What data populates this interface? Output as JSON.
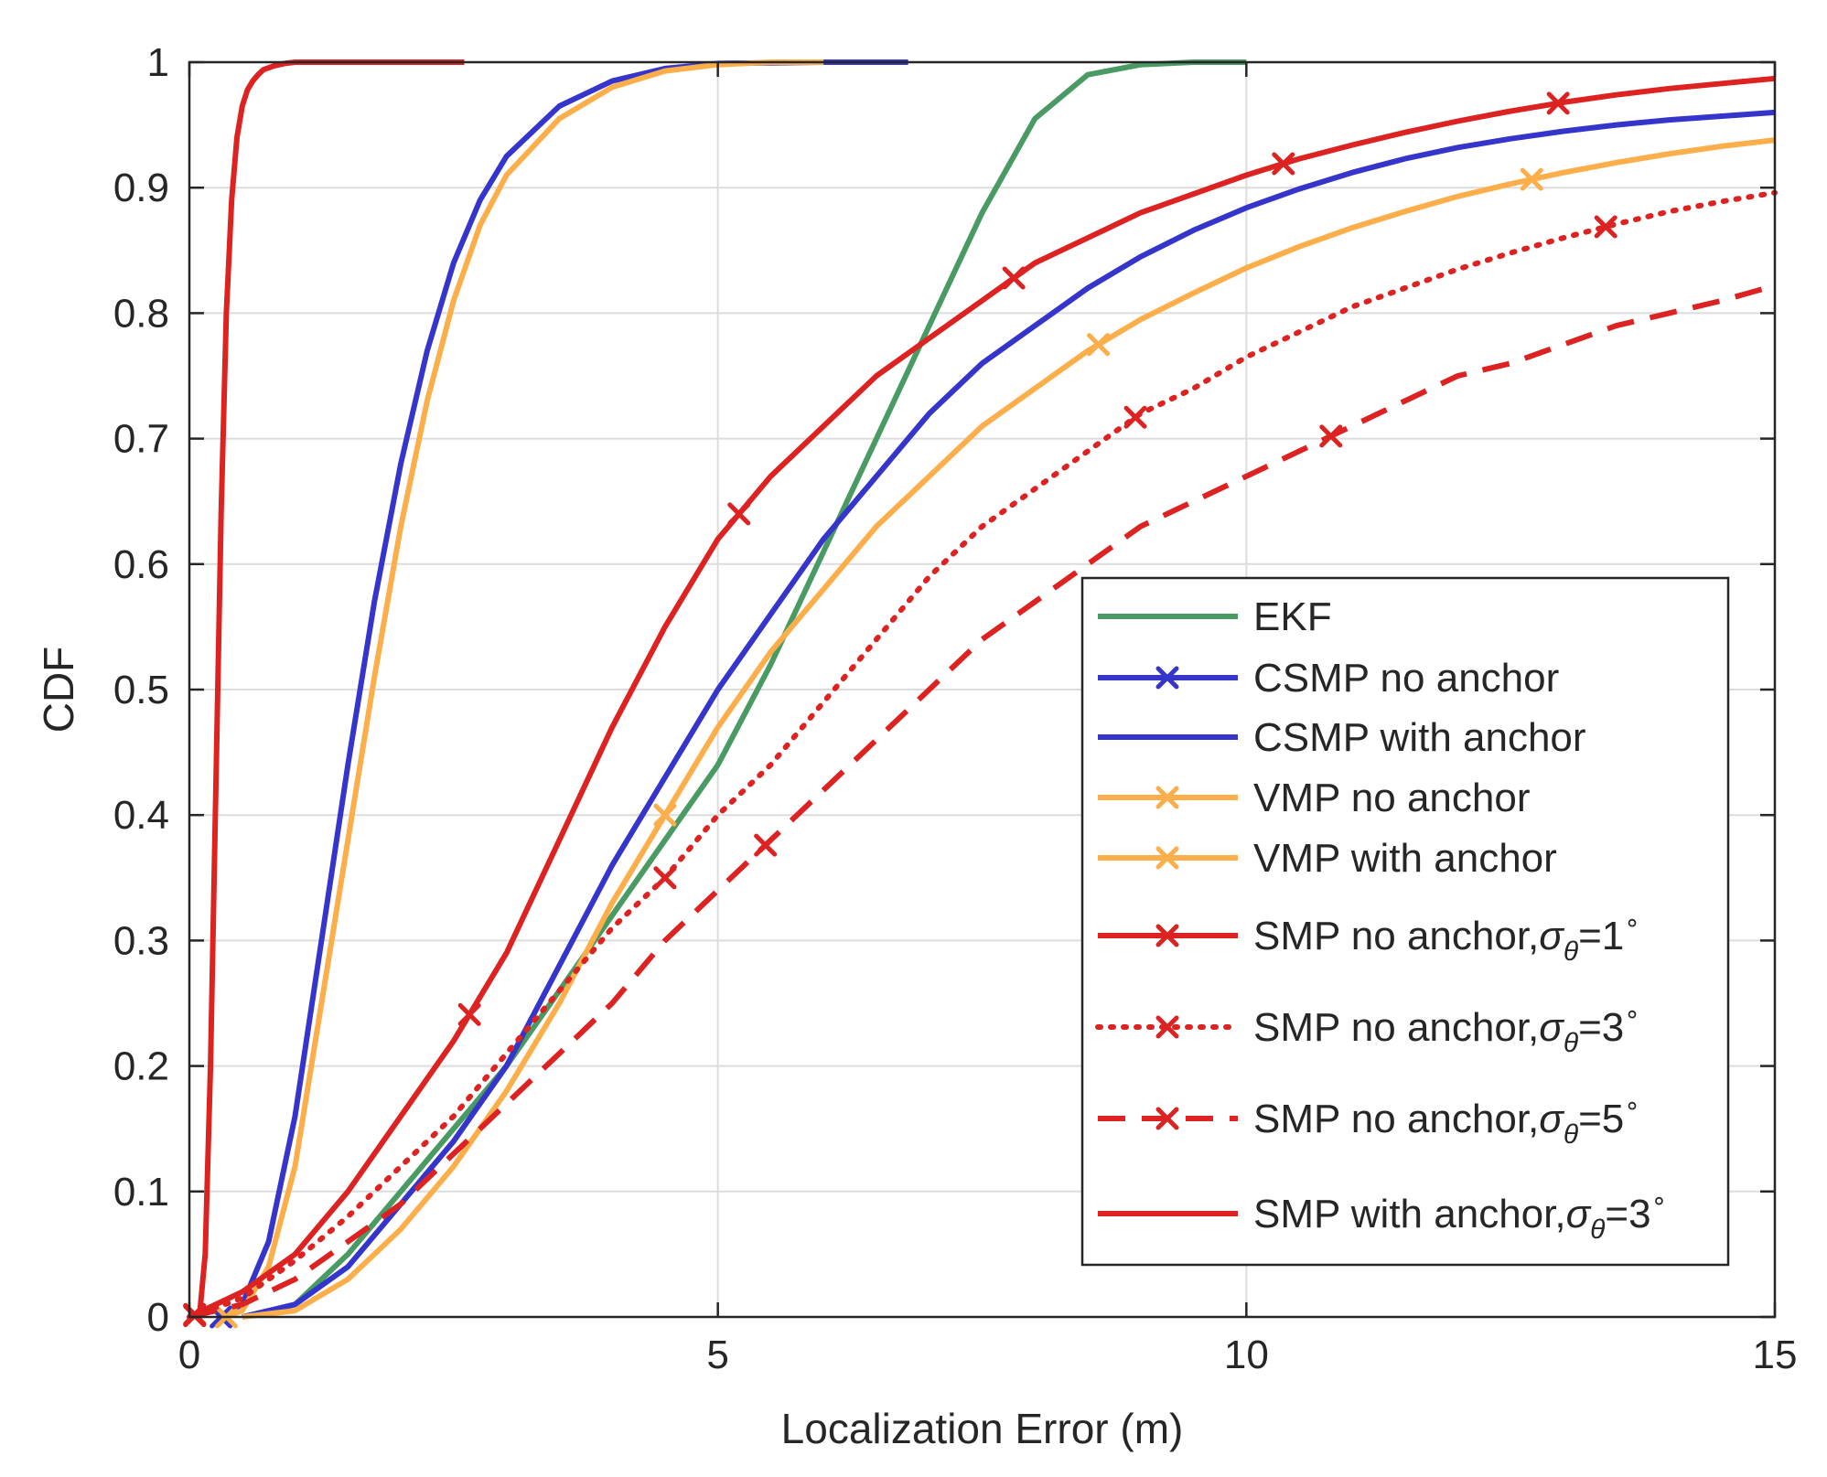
{
  "chart_data": {
    "type": "line",
    "title": "",
    "xlabel": "Localization Error (m)",
    "ylabel": "CDF",
    "xlim": [
      0,
      15
    ],
    "ylim": [
      0,
      1
    ],
    "xticks": [
      0,
      5,
      10,
      15
    ],
    "yticks": [
      0,
      0.1,
      0.2,
      0.3,
      0.4,
      0.5,
      0.6,
      0.7,
      0.8,
      0.9,
      1
    ],
    "grid": true,
    "legend_position": "bottom-right",
    "series": [
      {
        "name": "EKF",
        "label_main": "EKF",
        "label_sub": "",
        "label_value": "",
        "label_sup": "",
        "color": "#4a9a64",
        "dash": "solid",
        "marker": "none",
        "x": [
          0.5,
          1.0,
          1.5,
          2.0,
          2.5,
          3.0,
          3.5,
          4.0,
          4.5,
          5.0,
          5.5,
          6.0,
          6.5,
          7.0,
          7.5,
          8.0,
          8.5,
          9.0,
          9.5,
          10.0
        ],
        "y": [
          0,
          0.01,
          0.05,
          0.1,
          0.15,
          0.2,
          0.26,
          0.32,
          0.38,
          0.44,
          0.52,
          0.61,
          0.7,
          0.79,
          0.88,
          0.955,
          0.99,
          0.998,
          1.0,
          1.0
        ]
      },
      {
        "name": "CSMP no anchor",
        "label_main": "CSMP no anchor",
        "label_sub": "",
        "label_value": "",
        "label_sup": "",
        "color": "#3535cc",
        "dash": "solid",
        "marker": "x",
        "x": [
          0.3,
          0.5,
          0.75,
          1.0,
          1.25,
          1.5,
          1.75,
          2.0,
          2.25,
          2.5,
          2.75,
          3.0,
          3.5,
          4.0,
          4.5,
          5.0,
          6.0,
          6.8
        ],
        "y": [
          0,
          0.01,
          0.06,
          0.16,
          0.3,
          0.44,
          0.57,
          0.68,
          0.77,
          0.84,
          0.89,
          0.925,
          0.965,
          0.985,
          0.995,
          0.999,
          1.0,
          1.0
        ],
        "markers_x": [
          0.3
        ]
      },
      {
        "name": "CSMP with anchor",
        "label_main": "CSMP with anchor",
        "label_sub": "",
        "label_value": "",
        "label_sup": "",
        "color": "#3535cc",
        "dash": "solid",
        "marker": "none",
        "x": [
          0.5,
          1.0,
          1.5,
          2.0,
          2.5,
          3.0,
          3.5,
          4.0,
          4.5,
          5.0,
          5.5,
          6.0,
          6.5,
          7.0,
          7.5,
          8.0,
          8.5,
          9.0,
          9.5,
          10.0,
          10.5,
          11.0,
          11.5,
          12.0,
          12.5,
          13.0,
          13.5,
          14.0,
          14.5,
          15.0
        ],
        "y": [
          0,
          0.01,
          0.04,
          0.09,
          0.14,
          0.2,
          0.28,
          0.36,
          0.43,
          0.5,
          0.56,
          0.62,
          0.67,
          0.72,
          0.76,
          0.79,
          0.82,
          0.845,
          0.866,
          0.884,
          0.899,
          0.912,
          0.923,
          0.932,
          0.939,
          0.945,
          0.95,
          0.954,
          0.957,
          0.96
        ]
      },
      {
        "name": "VMP no anchor",
        "label_main": "VMP no anchor",
        "label_sub": "",
        "label_value": "",
        "label_sup": "",
        "color": "#fcae4a",
        "dash": "solid",
        "marker": "x",
        "x": [
          0.35,
          0.5,
          0.75,
          1.0,
          1.25,
          1.5,
          1.75,
          2.0,
          2.25,
          2.5,
          2.75,
          3.0,
          3.5,
          4.0,
          4.5,
          5.0,
          5.5,
          6.0
        ],
        "y": [
          0,
          0.005,
          0.04,
          0.12,
          0.25,
          0.38,
          0.51,
          0.63,
          0.73,
          0.81,
          0.87,
          0.91,
          0.955,
          0.98,
          0.993,
          0.998,
          1.0,
          1.0
        ],
        "markers_x": [
          0.35
        ]
      },
      {
        "name": "VMP with anchor",
        "label_main": "VMP with anchor",
        "label_sub": "",
        "label_value": "",
        "label_sup": "",
        "color": "#fcae4a",
        "dash": "solid",
        "marker": "x",
        "x": [
          0.5,
          1.0,
          1.5,
          2.0,
          2.5,
          3.0,
          3.5,
          4.0,
          4.5,
          5.0,
          5.5,
          6.0,
          6.5,
          7.0,
          7.5,
          8.0,
          8.5,
          9.0,
          9.5,
          10.0,
          10.5,
          11.0,
          11.5,
          12.0,
          12.5,
          13.0,
          13.5,
          14.0,
          14.5,
          15.0
        ],
        "y": [
          0,
          0.005,
          0.03,
          0.07,
          0.12,
          0.18,
          0.25,
          0.33,
          0.4,
          0.47,
          0.53,
          0.58,
          0.63,
          0.67,
          0.71,
          0.74,
          0.77,
          0.795,
          0.816,
          0.836,
          0.853,
          0.868,
          0.881,
          0.893,
          0.903,
          0.912,
          0.92,
          0.927,
          0.933,
          0.938
        ],
        "markers_x": [
          4.5,
          8.6,
          12.7
        ]
      },
      {
        "name": "SMP no anchor, σθ=1°",
        "label_main": "SMP no anchor,",
        "label_sub": "θ",
        "label_value": "=1",
        "label_sup": "∘",
        "color": "#dd2222",
        "dash": "solid",
        "marker": "x",
        "x": [
          0,
          0.5,
          1.0,
          1.5,
          2.0,
          2.5,
          3.0,
          3.5,
          4.0,
          4.5,
          5.0,
          5.5,
          6.0,
          6.5,
          7.0,
          7.5,
          8.0,
          8.5,
          9.0,
          9.5,
          10.0,
          10.5,
          11.0,
          11.5,
          12.0,
          12.5,
          13.0,
          13.5,
          14.0,
          14.5,
          15.0
        ],
        "y": [
          0,
          0.02,
          0.05,
          0.1,
          0.16,
          0.22,
          0.29,
          0.38,
          0.47,
          0.55,
          0.62,
          0.67,
          0.71,
          0.75,
          0.78,
          0.81,
          0.84,
          0.86,
          0.88,
          0.895,
          0.91,
          0.923,
          0.934,
          0.944,
          0.953,
          0.961,
          0.968,
          0.974,
          0.979,
          0.983,
          0.987
        ],
        "markers_x": [
          0.05,
          2.65,
          5.2,
          7.8,
          10.35,
          12.95
        ]
      },
      {
        "name": "SMP no anchor, σθ=3°",
        "label_main": "SMP no anchor,",
        "label_sub": "θ",
        "label_value": "=3",
        "label_sup": "∘",
        "color": "#dd2222",
        "dash": "dotted",
        "marker": "x",
        "x": [
          0,
          0.5,
          1.0,
          1.5,
          2.0,
          2.5,
          3.0,
          3.5,
          4.0,
          4.5,
          5.0,
          5.5,
          6.0,
          6.5,
          7.0,
          7.5,
          8.0,
          8.5,
          9.0,
          9.5,
          10.0,
          10.5,
          11.0,
          11.5,
          12.0,
          12.5,
          13.0,
          13.5,
          14.0,
          14.5,
          15.0
        ],
        "y": [
          0,
          0.015,
          0.045,
          0.08,
          0.12,
          0.16,
          0.21,
          0.26,
          0.31,
          0.35,
          0.4,
          0.44,
          0.49,
          0.54,
          0.59,
          0.63,
          0.66,
          0.69,
          0.72,
          0.74,
          0.765,
          0.785,
          0.805,
          0.82,
          0.835,
          0.848,
          0.86,
          0.871,
          0.881,
          0.889,
          0.896
        ],
        "markers_x": [
          0.05,
          4.5,
          8.95,
          13.4
        ]
      },
      {
        "name": "SMP no anchor, σθ=5°",
        "label_main": "SMP no anchor,",
        "label_sub": "θ",
        "label_value": "=5",
        "label_sup": "∘",
        "color": "#dd2222",
        "dash": "dashed",
        "marker": "x",
        "x": [
          0,
          0.5,
          1.0,
          1.5,
          2.0,
          2.5,
          3.0,
          3.5,
          4.0,
          4.5,
          5.0,
          5.5,
          6.0,
          6.5,
          7.0,
          7.5,
          8.0,
          8.5,
          9.0,
          9.5,
          10.0,
          10.5,
          11.0,
          11.5,
          12.0,
          12.5,
          13.0,
          13.5,
          14.0,
          14.5,
          15.0
        ],
        "y": [
          0,
          0.01,
          0.03,
          0.06,
          0.09,
          0.13,
          0.17,
          0.21,
          0.25,
          0.3,
          0.34,
          0.38,
          0.42,
          0.46,
          0.5,
          0.54,
          0.57,
          0.6,
          0.63,
          0.65,
          0.67,
          0.69,
          0.71,
          0.73,
          0.75,
          0.76,
          0.775,
          0.79,
          0.8,
          0.81,
          0.822
        ],
        "markers_x": [
          0.05,
          5.45,
          10.8
        ]
      },
      {
        "name": "SMP with anchor, σθ=3°",
        "label_main": "SMP with anchor,",
        "label_sub": "θ",
        "label_value": "=3",
        "label_sup": "∘",
        "color": "#dd2222",
        "dash": "solid",
        "marker": "none",
        "x": [
          0.05,
          0.1,
          0.15,
          0.2,
          0.25,
          0.3,
          0.35,
          0.4,
          0.45,
          0.5,
          0.55,
          0.6,
          0.65,
          0.7,
          0.8,
          0.9,
          1.0,
          1.5,
          2.0,
          2.6
        ],
        "y": [
          0,
          0.005,
          0.05,
          0.2,
          0.42,
          0.64,
          0.8,
          0.89,
          0.94,
          0.965,
          0.978,
          0.985,
          0.99,
          0.994,
          0.997,
          0.999,
          1.0,
          1.0,
          1.0,
          1.0
        ]
      }
    ]
  }
}
